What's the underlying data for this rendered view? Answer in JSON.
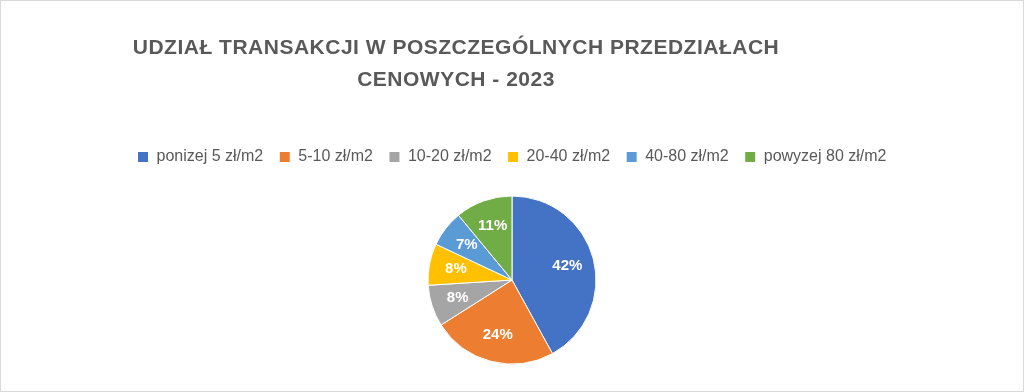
{
  "chart_data": {
    "type": "pie",
    "title": "UDZIAŁ TRANSAKCJI W POSZCZEGÓLNYCH PRZEDZIAŁACH CENOWYCH - 2023",
    "categories": [
      "ponizej 5 zł/m2",
      "5-10 zł/m2",
      "10-20 zł/m2",
      "20-40 zł/m2",
      "40-80 zł/m2",
      "powyzej 80 zł/m2"
    ],
    "values": [
      42,
      24,
      8,
      8,
      7,
      11
    ],
    "colors": [
      "#4472c4",
      "#ed7d31",
      "#a5a5a5",
      "#ffc000",
      "#5b9bd5",
      "#70ad47"
    ],
    "value_labels": [
      "42%",
      "24%",
      "8%",
      "8%",
      "7%",
      "11%"
    ],
    "legend": "top"
  }
}
